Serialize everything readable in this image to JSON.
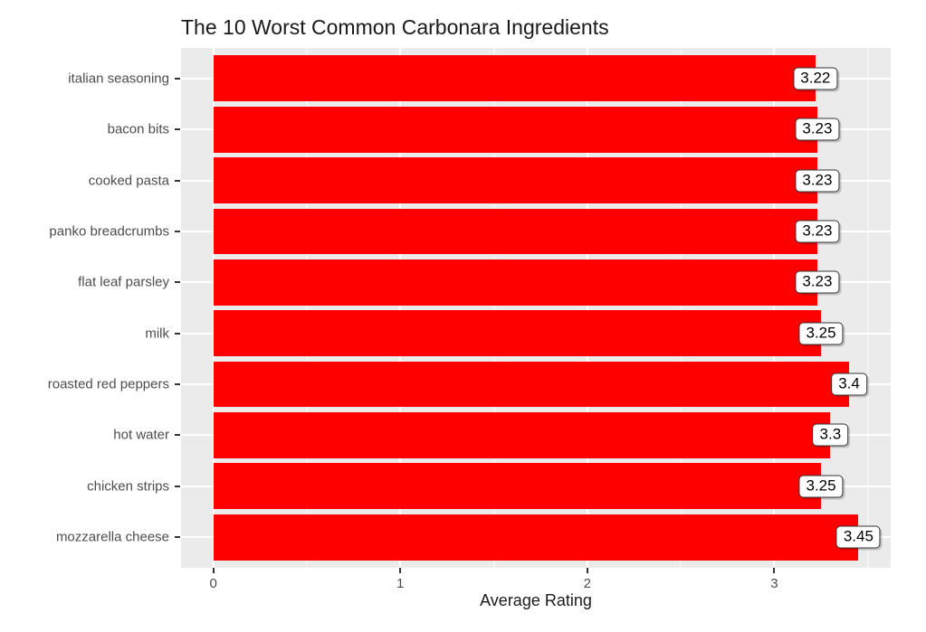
{
  "chart_data": {
    "type": "bar",
    "orientation": "horizontal",
    "title": "The 10 Worst Common Carbonara Ingredients",
    "xlabel": "Average Rating",
    "ylabel": "",
    "legend": "none",
    "grid": true,
    "categories": [
      "italian seasoning",
      "bacon bits",
      "cooked pasta",
      "panko breadcrumbs",
      "flat leaf parsley",
      "milk",
      "roasted red peppers",
      "hot water",
      "chicken strips",
      "mozzarella cheese"
    ],
    "values": [
      3.22,
      3.23,
      3.23,
      3.23,
      3.23,
      3.25,
      3.4,
      3.3,
      3.25,
      3.45
    ],
    "value_labels": [
      "3.22",
      "3.23",
      "3.23",
      "3.23",
      "3.23",
      "3.25",
      "3.4",
      "3.3",
      "3.25",
      "3.45"
    ],
    "x_ticks": [
      0,
      1,
      2,
      3
    ],
    "x_tick_labels": [
      "0",
      "1",
      "2",
      "3"
    ],
    "x_minor_ticks": [
      0.5,
      1.5,
      2.5,
      3.5
    ],
    "x_domain": [
      -0.1725,
      3.6225
    ],
    "xlim": [
      0,
      3.45
    ],
    "colors": {
      "bar": "#FF0000",
      "panel_background": "#EBEBEB",
      "gridline": "#FFFFFF",
      "tick_text": "#4D4D4D",
      "tick_mark": "#333333",
      "title_text": "#1A1A1A",
      "axis_title_text": "#1A1A1A",
      "label_box_background": "#FFFFFF",
      "label_box_border": "#333333",
      "label_text": "#000000"
    }
  }
}
